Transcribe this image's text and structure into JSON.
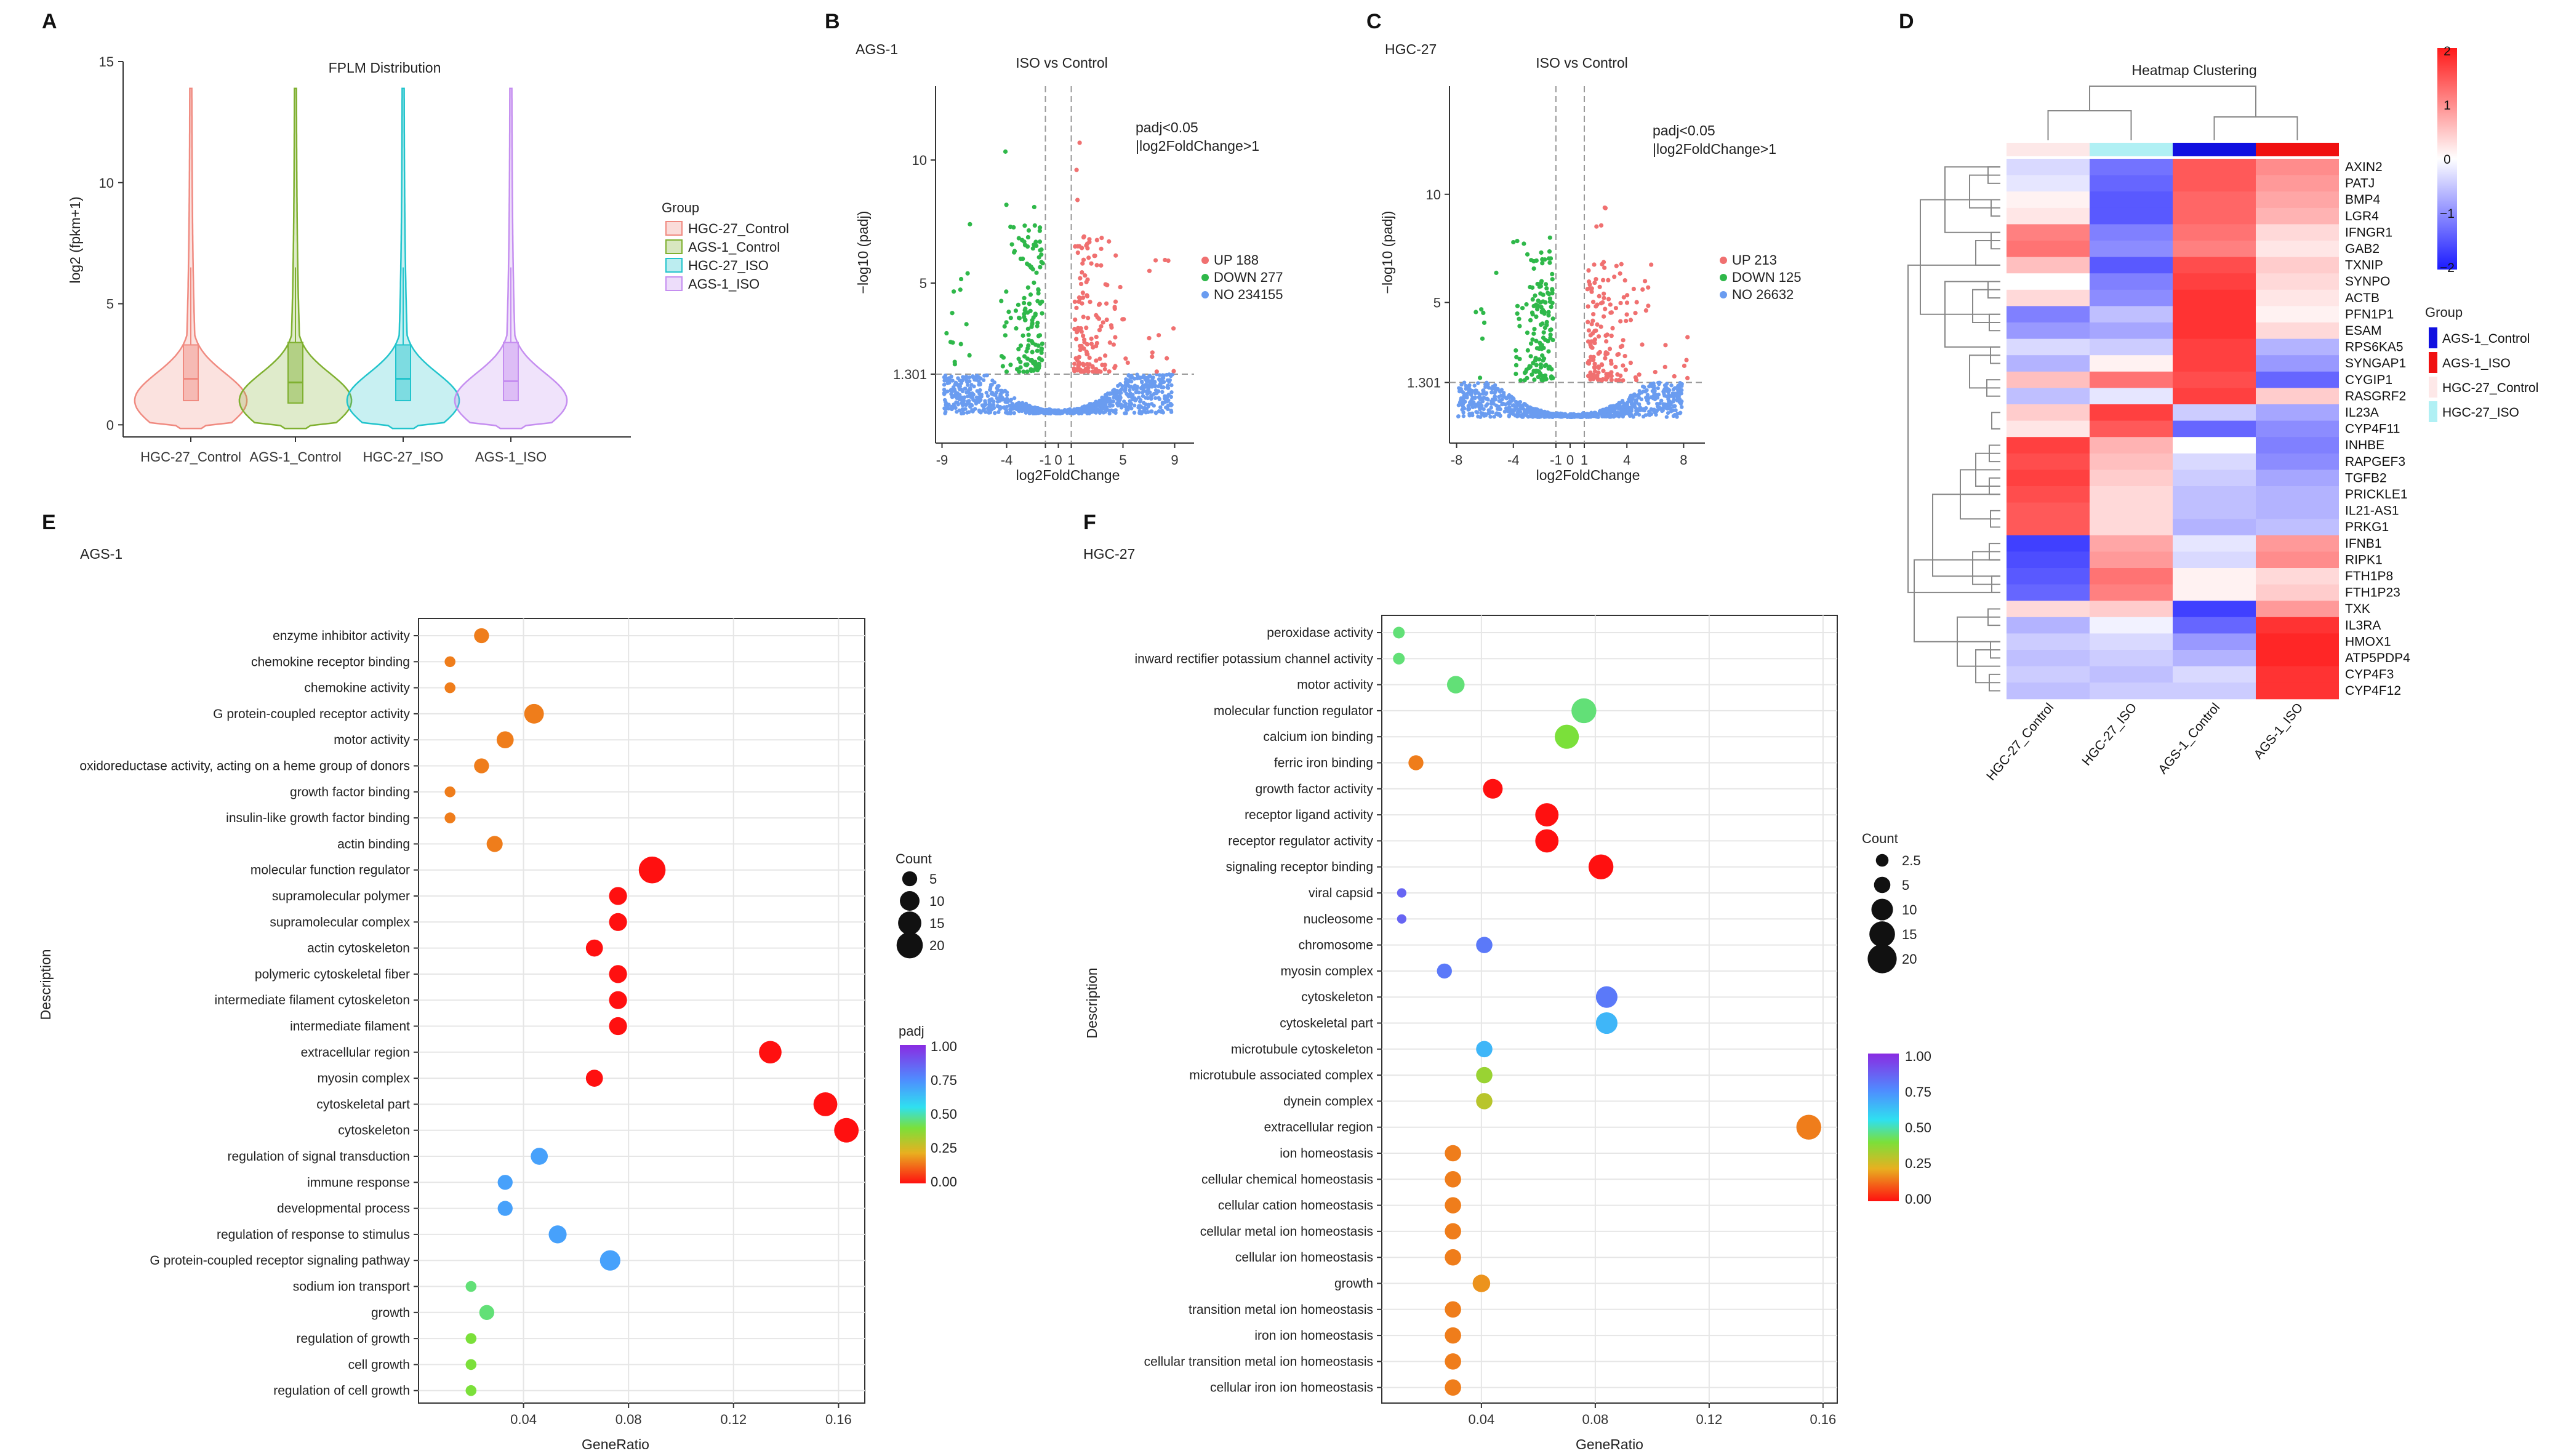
{
  "panels": {
    "A": {
      "label": "A",
      "title": "FPLM Distribution",
      "ylabel": "log2 (fpkm+1)",
      "legend_title": "Group"
    },
    "B": {
      "label": "B",
      "cell": "AGS-1",
      "title": "ISO vs Control",
      "xlabel": "log2FoldChange",
      "ylabel": "−log10 (padj)",
      "note1": "padj<0.05",
      "note2": "|log2FoldChange>1",
      "legend": [
        "UP 188",
        "DOWN 277",
        "NO 234155"
      ]
    },
    "C": {
      "label": "C",
      "cell": "HGC-27",
      "title": "ISO vs Control",
      "xlabel": "log2FoldChange",
      "ylabel": "−log10 (padj)",
      "note1": "padj<0.05",
      "note2": "|log2FoldChange>1",
      "legend": [
        "UP 213",
        "DOWN 125",
        "NO 26632"
      ]
    },
    "D": {
      "label": "D",
      "title": "Heatmap Clustering",
      "legend_title": "Group"
    },
    "E": {
      "label": "E",
      "cell": "AGS-1",
      "xlabel": "GeneRatio",
      "ylabel": "Description",
      "count_title": "Count",
      "padj_title": "padj"
    },
    "F": {
      "label": "F",
      "cell": "HGC-27",
      "xlabel": "GeneRatio",
      "ylabel": "Description",
      "count_title": "Count"
    }
  },
  "chart_data": [
    {
      "id": "A",
      "type": "violin",
      "title": "FPLM Distribution",
      "ylabel": "log2 (fpkm+1)",
      "ylim": [
        -0.5,
        15
      ],
      "yticks": [
        0,
        5,
        10,
        15
      ],
      "categories": [
        "HGC-27_Control",
        "AGS-1_Control",
        "HGC-27_ISO",
        "AGS-1_ISO"
      ],
      "legend_entries": [
        "HGC-27_Control",
        "AGS-1_Control",
        "HGC-27_ISO",
        "AGS-1_ISO"
      ],
      "colors": [
        "#f08a80",
        "#7fb030",
        "#22c4cc",
        "#c58ef0"
      ],
      "max": [
        14,
        14,
        14,
        14
      ],
      "q1": [
        1.0,
        0.9,
        1.0,
        1.0
      ],
      "median": [
        1.9,
        1.75,
        1.9,
        1.8
      ],
      "q3": [
        3.3,
        3.4,
        3.3,
        3.4
      ]
    },
    {
      "id": "B",
      "type": "scatter",
      "title": "ISO vs Control",
      "xlabel": "log2FoldChange",
      "ylabel": "−log10 (padj)",
      "xlim": [
        -9.5,
        10.5
      ],
      "ylim": [
        -1.5,
        13
      ],
      "xticks": [
        -9,
        -4,
        -1,
        0,
        1,
        5,
        9
      ],
      "yticks": [
        1.301,
        5,
        10
      ],
      "threshold_lines": {
        "x": [
          -1,
          1
        ],
        "y": 1.301
      },
      "series": [
        {
          "name": "UP",
          "count": 188,
          "color": "#f07070"
        },
        {
          "name": "DOWN",
          "count": 277,
          "color": "#2fb84a"
        },
        {
          "name": "NO",
          "count": 234155,
          "color": "#6a9cf0"
        }
      ]
    },
    {
      "id": "C",
      "type": "scatter",
      "title": "ISO vs Control",
      "xlabel": "log2FoldChange",
      "ylabel": "−log10 (padj)",
      "xlim": [
        -8.5,
        9.5
      ],
      "ylim": [
        -1.5,
        15
      ],
      "xticks": [
        -8,
        -4,
        -1,
        0,
        1,
        4,
        8
      ],
      "yticks": [
        1.301,
        5,
        10
      ],
      "threshold_lines": {
        "x": [
          -1,
          1
        ],
        "y": 1.301
      },
      "series": [
        {
          "name": "UP",
          "count": 213,
          "color": "#f07070"
        },
        {
          "name": "DOWN",
          "count": 125,
          "color": "#2fb84a"
        },
        {
          "name": "NO",
          "count": 26632,
          "color": "#6a9cf0"
        }
      ]
    },
    {
      "id": "D",
      "type": "heatmap",
      "title": "Heatmap Clustering",
      "columns": [
        "HGC-27_Control",
        "HGC-27_ISO",
        "AGS-1_Control",
        "AGS-1_ISO"
      ],
      "column_groups": [
        "HGC-27_Control",
        "HGC-27_ISO",
        "AGS-1_Control",
        "AGS-1_ISO"
      ],
      "group_legend": [
        {
          "name": "AGS-1_Control",
          "color": "#1010e0"
        },
        {
          "name": "AGS-1_ISO",
          "color": "#f01010"
        },
        {
          "name": "HGC-27_Control",
          "color": "#fde8e8"
        },
        {
          "name": "HGC-27_ISO",
          "color": "#b0f0f4"
        }
      ],
      "scale": [
        -2,
        2
      ],
      "scale_ticks": [
        2,
        1,
        0,
        -1,
        -2
      ],
      "rows": [
        "AXIN2",
        "PATJ",
        "BMP4",
        "LGR4",
        "IFNGR1",
        "GAB2",
        "TXNIP",
        "SYNPO",
        "ACTB",
        "PFN1P1",
        "ESAM",
        "RPS6KA5",
        "SYNGAP1",
        "CYGIP1",
        "RASGRF2",
        "IL23A",
        "CYP4F11",
        "INHBE",
        "RAPGEF3",
        "TGFB2",
        "PRICKLE1",
        "IL21-AS1",
        "PRKG1",
        "IFNB1",
        "RIPK1",
        "FTH1P8",
        "FTH1P23",
        "TXK",
        "IL3RA",
        "HMOX1",
        "ATP5PDP4",
        "CYP4F3",
        "CYP4F12"
      ],
      "values": [
        [
          -0.3,
          -1.1,
          1.3,
          0.9
        ],
        [
          -0.2,
          -1.2,
          1.3,
          0.8
        ],
        [
          0.1,
          -1.3,
          1.2,
          0.7
        ],
        [
          0.2,
          -1.3,
          1.2,
          0.6
        ],
        [
          1.0,
          -1.0,
          1.1,
          0.3
        ],
        [
          1.1,
          -0.9,
          1.0,
          0.2
        ],
        [
          0.5,
          -1.3,
          1.4,
          0.4
        ],
        [
          0.0,
          -1.0,
          1.5,
          0.3
        ],
        [
          0.3,
          -0.9,
          1.6,
          0.2
        ],
        [
          -1.0,
          -0.5,
          1.6,
          0.1
        ],
        [
          -0.8,
          -0.7,
          1.6,
          0.3
        ],
        [
          -0.3,
          -0.4,
          1.5,
          -0.6
        ],
        [
          -0.6,
          0.1,
          1.5,
          -0.8
        ],
        [
          0.5,
          1.1,
          1.4,
          -1.2
        ],
        [
          -0.5,
          -0.2,
          1.5,
          0.4
        ],
        [
          0.4,
          1.5,
          -0.4,
          -0.7
        ],
        [
          0.2,
          1.3,
          -1.2,
          -0.9
        ],
        [
          1.5,
          0.6,
          0.0,
          -1.0
        ],
        [
          1.4,
          0.5,
          -0.3,
          -0.9
        ],
        [
          1.5,
          0.4,
          -0.4,
          -0.7
        ],
        [
          1.4,
          0.3,
          -0.5,
          -0.6
        ],
        [
          1.3,
          0.3,
          -0.5,
          -0.6
        ],
        [
          1.3,
          0.3,
          -0.6,
          -0.5
        ],
        [
          -1.5,
          0.7,
          -0.2,
          0.8
        ],
        [
          -1.4,
          0.8,
          -0.3,
          0.9
        ],
        [
          -1.3,
          1.1,
          0.1,
          0.3
        ],
        [
          -1.2,
          1.0,
          0.1,
          0.4
        ],
        [
          0.3,
          0.4,
          -1.5,
          0.8
        ],
        [
          -0.6,
          -0.1,
          -1.2,
          1.6
        ],
        [
          -0.4,
          -0.3,
          -0.8,
          1.7
        ],
        [
          -0.5,
          -0.4,
          -0.6,
          1.7
        ],
        [
          -0.4,
          -0.5,
          -0.3,
          1.6
        ],
        [
          -0.5,
          -0.4,
          -0.4,
          1.6
        ]
      ]
    },
    {
      "id": "E",
      "type": "scatter",
      "subtype": "dotplot",
      "xlabel": "GeneRatio",
      "ylabel": "Description",
      "xlim": [
        0.0,
        0.17
      ],
      "xticks": [
        0.04,
        0.08,
        0.12,
        0.16
      ],
      "size_legend": {
        "title": "Count",
        "values": [
          5,
          10,
          15,
          20
        ]
      },
      "color_legend": {
        "title": "padj",
        "ticks": [
          1.0,
          0.75,
          0.5,
          0.25,
          0.0
        ]
      },
      "terms": [
        {
          "name": "enzyme inhibitor activity",
          "x": 0.024,
          "count": 5,
          "padj": 0.15
        },
        {
          "name": "chemokine receptor binding",
          "x": 0.012,
          "count": 2,
          "padj": 0.15
        },
        {
          "name": "chemokine activity",
          "x": 0.012,
          "count": 2,
          "padj": 0.15
        },
        {
          "name": "G protein-coupled receptor activity",
          "x": 0.044,
          "count": 10,
          "padj": 0.15
        },
        {
          "name": "motor activity",
          "x": 0.033,
          "count": 7,
          "padj": 0.15
        },
        {
          "name": "oxidoreductase activity, acting on a heme group of donors",
          "x": 0.024,
          "count": 5,
          "padj": 0.15
        },
        {
          "name": "growth factor binding",
          "x": 0.012,
          "count": 2,
          "padj": 0.15
        },
        {
          "name": "insulin-like growth factor binding",
          "x": 0.012,
          "count": 2,
          "padj": 0.15
        },
        {
          "name": "actin binding",
          "x": 0.029,
          "count": 6,
          "padj": 0.15
        },
        {
          "name": "molecular function regulator",
          "x": 0.089,
          "count": 21,
          "padj": 0.0
        },
        {
          "name": "supramolecular polymer",
          "x": 0.076,
          "count": 8,
          "padj": 0.0
        },
        {
          "name": "supramolecular complex",
          "x": 0.076,
          "count": 8,
          "padj": 0.0
        },
        {
          "name": "actin cytoskeleton",
          "x": 0.067,
          "count": 7,
          "padj": 0.0
        },
        {
          "name": "polymeric cytoskeletal fiber",
          "x": 0.076,
          "count": 8,
          "padj": 0.0
        },
        {
          "name": "intermediate filament cytoskeleton",
          "x": 0.076,
          "count": 8,
          "padj": 0.0
        },
        {
          "name": "intermediate filament",
          "x": 0.076,
          "count": 8,
          "padj": 0.0
        },
        {
          "name": "extracellular region",
          "x": 0.134,
          "count": 14,
          "padj": 0.0
        },
        {
          "name": "myosin complex",
          "x": 0.067,
          "count": 7,
          "padj": 0.0
        },
        {
          "name": "cytoskeletal part",
          "x": 0.155,
          "count": 16,
          "padj": 0.0
        },
        {
          "name": "cytoskeleton",
          "x": 0.163,
          "count": 17,
          "padj": 0.0
        },
        {
          "name": "regulation of signal transduction",
          "x": 0.046,
          "count": 7,
          "padj": 0.7
        },
        {
          "name": "immune response",
          "x": 0.033,
          "count": 5,
          "padj": 0.7
        },
        {
          "name": "developmental process",
          "x": 0.033,
          "count": 5,
          "padj": 0.7
        },
        {
          "name": "regulation of response to stimulus",
          "x": 0.053,
          "count": 8,
          "padj": 0.7
        },
        {
          "name": "G protein-coupled receptor signaling pathway",
          "x": 0.073,
          "count": 11,
          "padj": 0.7
        },
        {
          "name": "sodium ion transport",
          "x": 0.02,
          "count": 2,
          "padj": 0.45
        },
        {
          "name": "growth",
          "x": 0.026,
          "count": 5,
          "padj": 0.45
        },
        {
          "name": "regulation of growth",
          "x": 0.02,
          "count": 2,
          "padj": 0.4
        },
        {
          "name": "cell growth",
          "x": 0.02,
          "count": 2,
          "padj": 0.4
        },
        {
          "name": "regulation of cell growth",
          "x": 0.02,
          "count": 2,
          "padj": 0.4
        }
      ]
    },
    {
      "id": "F",
      "type": "scatter",
      "subtype": "dotplot",
      "xlabel": "GeneRatio",
      "ylabel": "Description",
      "xlim": [
        0.005,
        0.165
      ],
      "xticks": [
        0.04,
        0.08,
        0.12,
        0.16
      ],
      "size_legend": {
        "title": "Count",
        "values": [
          2.5,
          5,
          10,
          15,
          20
        ]
      },
      "color_legend": {
        "title": "",
        "ticks": [
          1.0,
          0.75,
          0.5,
          0.25,
          0.0
        ]
      },
      "terms": [
        {
          "name": "peroxidase activity",
          "x": 0.011,
          "count": 2,
          "padj": 0.45
        },
        {
          "name": "inward rectifier potassium channel activity",
          "x": 0.011,
          "count": 2,
          "padj": 0.45
        },
        {
          "name": "motor activity",
          "x": 0.031,
          "count": 6,
          "padj": 0.45
        },
        {
          "name": "molecular function regulator",
          "x": 0.076,
          "count": 14,
          "padj": 0.45
        },
        {
          "name": "calcium ion binding",
          "x": 0.07,
          "count": 13,
          "padj": 0.4
        },
        {
          "name": "ferric iron binding",
          "x": 0.017,
          "count": 4,
          "padj": 0.15
        },
        {
          "name": "growth factor activity",
          "x": 0.044,
          "count": 8,
          "padj": 0.0
        },
        {
          "name": "receptor ligand activity",
          "x": 0.063,
          "count": 12,
          "padj": 0.0
        },
        {
          "name": "receptor regulator activity",
          "x": 0.063,
          "count": 12,
          "padj": 0.0
        },
        {
          "name": "signaling receptor binding",
          "x": 0.082,
          "count": 14,
          "padj": 0.0
        },
        {
          "name": "viral capsid",
          "x": 0.012,
          "count": 1,
          "padj": 0.85
        },
        {
          "name": "nucleosome",
          "x": 0.012,
          "count": 1,
          "padj": 0.85
        },
        {
          "name": "chromosome",
          "x": 0.041,
          "count": 5,
          "padj": 0.8
        },
        {
          "name": "myosin complex",
          "x": 0.027,
          "count": 4,
          "padj": 0.8
        },
        {
          "name": "cytoskeleton",
          "x": 0.084,
          "count": 10,
          "padj": 0.8
        },
        {
          "name": "cytoskeletal part",
          "x": 0.084,
          "count": 10,
          "padj": 0.65
        },
        {
          "name": "microtubule cytoskeleton",
          "x": 0.041,
          "count": 5,
          "padj": 0.65
        },
        {
          "name": "microtubule associated complex",
          "x": 0.041,
          "count": 5,
          "padj": 0.35
        },
        {
          "name": "dynein complex",
          "x": 0.041,
          "count": 5,
          "padj": 0.3
        },
        {
          "name": "extracellular region",
          "x": 0.155,
          "count": 14,
          "padj": 0.15
        },
        {
          "name": "ion homeostasis",
          "x": 0.03,
          "count": 5,
          "padj": 0.15
        },
        {
          "name": "cellular chemical homeostasis",
          "x": 0.03,
          "count": 5,
          "padj": 0.15
        },
        {
          "name": "cellular cation homeostasis",
          "x": 0.03,
          "count": 5,
          "padj": 0.15
        },
        {
          "name": "cellular metal ion homeostasis",
          "x": 0.03,
          "count": 5,
          "padj": 0.15
        },
        {
          "name": "cellular ion homeostasis",
          "x": 0.03,
          "count": 5,
          "padj": 0.15
        },
        {
          "name": "growth",
          "x": 0.04,
          "count": 6,
          "padj": 0.18
        },
        {
          "name": "transition metal ion homeostasis",
          "x": 0.03,
          "count": 5,
          "padj": 0.15
        },
        {
          "name": "iron ion homeostasis",
          "x": 0.03,
          "count": 5,
          "padj": 0.15
        },
        {
          "name": "cellular transition metal ion homeostasis",
          "x": 0.03,
          "count": 5,
          "padj": 0.15
        },
        {
          "name": "cellular iron ion homeostasis",
          "x": 0.03,
          "count": 5,
          "padj": 0.15
        }
      ]
    }
  ]
}
